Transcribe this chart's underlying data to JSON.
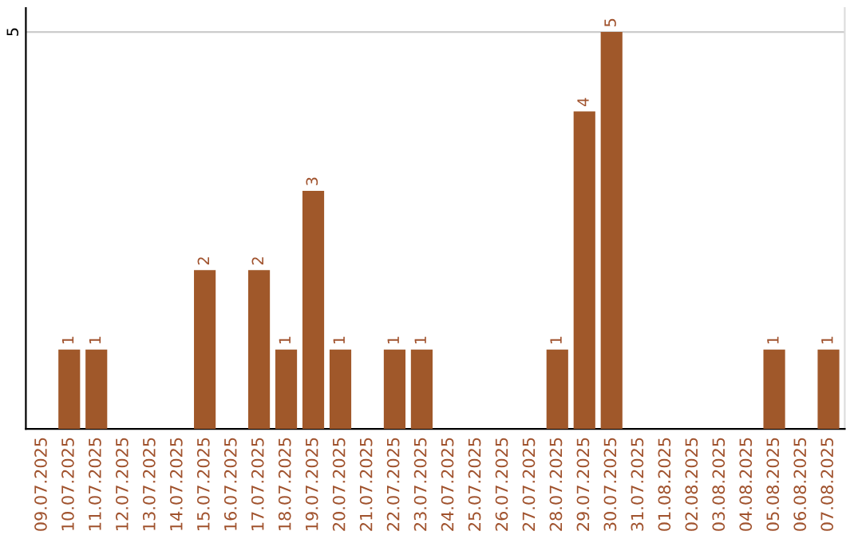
{
  "chart_data": {
    "type": "bar",
    "categories": [
      "09.07.2025",
      "10.07.2025",
      "11.07.2025",
      "12.07.2025",
      "13.07.2025",
      "14.07.2025",
      "15.07.2025",
      "16.07.2025",
      "17.07.2025",
      "18.07.2025",
      "19.07.2025",
      "20.07.2025",
      "21.07.2025",
      "22.07.2025",
      "23.07.2025",
      "24.07.2025",
      "25.07.2025",
      "26.07.2025",
      "27.07.2025",
      "28.07.2025",
      "29.07.2025",
      "30.07.2025",
      "31.07.2025",
      "01.08.2025",
      "02.08.2025",
      "03.08.2025",
      "04.08.2025",
      "05.08.2025",
      "06.08.2025",
      "07.08.2025"
    ],
    "values": [
      0,
      1,
      1,
      0,
      0,
      0,
      2,
      0,
      2,
      1,
      3,
      1,
      0,
      1,
      1,
      0,
      0,
      0,
      0,
      1,
      4,
      5,
      0,
      0,
      0,
      0,
      0,
      1,
      0,
      1
    ],
    "value_labels": [
      null,
      "1",
      "1",
      null,
      null,
      null,
      "2",
      null,
      "2",
      "1",
      "3",
      "1",
      null,
      "1",
      "1",
      null,
      null,
      null,
      null,
      "1",
      "4",
      "5",
      null,
      null,
      null,
      null,
      null,
      "1",
      null,
      "1"
    ],
    "color": "#a0582a",
    "ylim": [
      0,
      5.3
    ],
    "yticks": [
      5
    ],
    "grid": "y"
  }
}
